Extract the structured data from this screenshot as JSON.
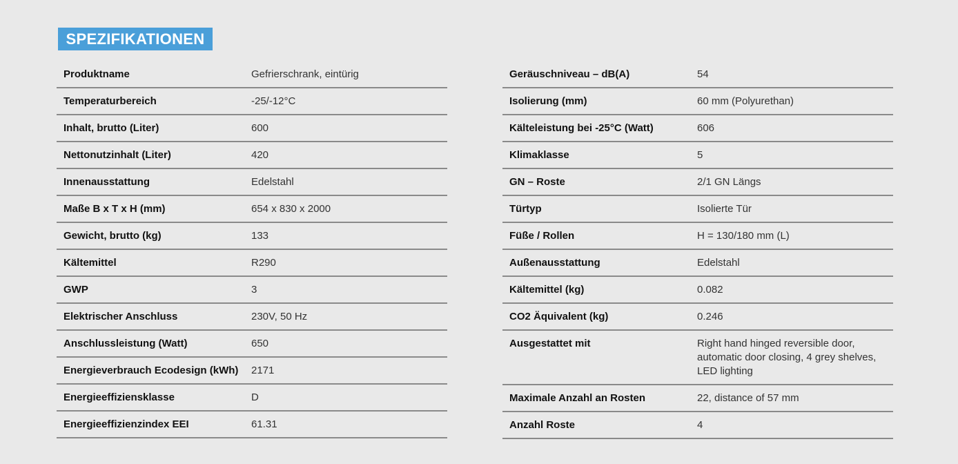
{
  "title": "SPEZIFIKATIONEN",
  "colors": {
    "accent": "#4a9fd9",
    "background": "#e9e9e9",
    "divider": "#8a8a8a"
  },
  "left": [
    {
      "label": "Produktname",
      "value": "Gefrierschrank, eintürig"
    },
    {
      "label": "Temperaturbereich",
      "value": "-25/-12°C"
    },
    {
      "label": "Inhalt, brutto (Liter)",
      "value": "600"
    },
    {
      "label": "Nettonutzinhalt (Liter)",
      "value": "420"
    },
    {
      "label": "Innenausstattung",
      "value": "Edelstahl"
    },
    {
      "label": "Maße B x T x H (mm)",
      "value": "654 x 830 x 2000"
    },
    {
      "label": "Gewicht, brutto (kg)",
      "value": "133"
    },
    {
      "label": "Kältemittel",
      "value": "R290"
    },
    {
      "label": "GWP",
      "value": "3"
    },
    {
      "label": "Elektrischer Anschluss",
      "value": "230V, 50 Hz"
    },
    {
      "label": "Anschlussleistung (Watt)",
      "value": "650"
    },
    {
      "label": "Energieverbrauch Ecodesign (kWh)",
      "value": "2171"
    },
    {
      "label": "Energieeffiziensklasse",
      "value": "D"
    },
    {
      "label": "Energieeffizienzindex EEI",
      "value": "61.31"
    }
  ],
  "right": [
    {
      "label": "Geräuschniveau – dB(A)",
      "value": "54"
    },
    {
      "label": "Isolierung (mm)",
      "value": "60 mm (Polyurethan)"
    },
    {
      "label": "Kälteleistung bei -25°C (Watt)",
      "value": "606"
    },
    {
      "label": "Klimaklasse",
      "value": "5"
    },
    {
      "label": "GN – Roste",
      "value": "2/1 GN Längs"
    },
    {
      "label": "Türtyp",
      "value": "Isolierte Tür"
    },
    {
      "label": "Füße / Rollen",
      "value": "H = 130/180 mm (L)"
    },
    {
      "label": "Außenausstattung",
      "value": "Edelstahl"
    },
    {
      "label": "Kältemittel (kg)",
      "value": "0.082"
    },
    {
      "label": "CO2 Äquivalent (kg)",
      "value": "0.246"
    },
    {
      "label": "Ausgestattet mit",
      "value": "Right hand hinged reversible door, automatic door closing, 4 grey shelves, LED lighting"
    },
    {
      "label": "Maximale Anzahl an Rosten",
      "value": "22, distance of 57 mm"
    },
    {
      "label": "Anzahl Roste",
      "value": "4"
    }
  ]
}
